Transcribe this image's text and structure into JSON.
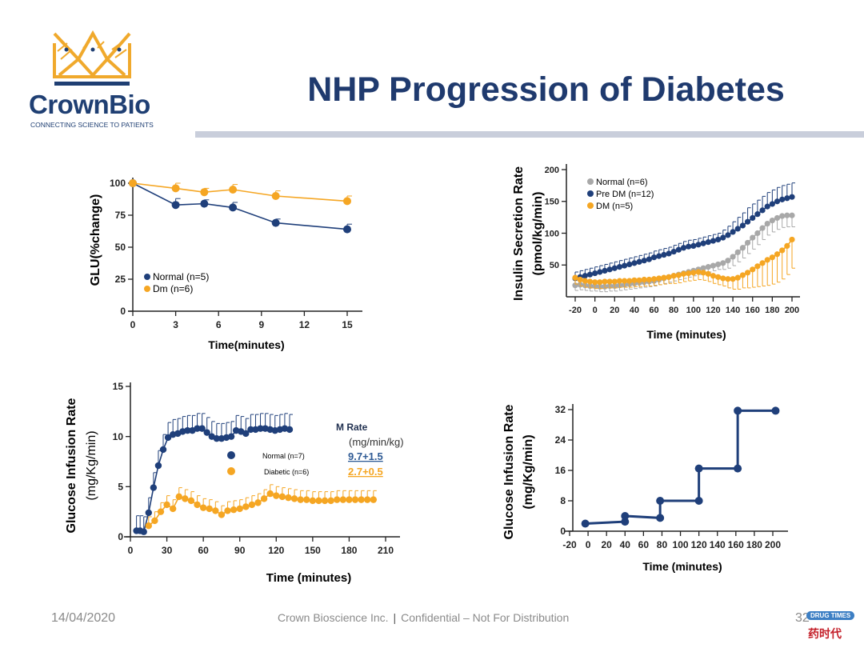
{
  "header": {
    "title": "NHP Progression of Diabetes"
  },
  "logo": {
    "name": "CrownBio",
    "tagline": "CONNECTING SCIENCE TO PATIENTS"
  },
  "footer": {
    "date": "14/04/2020",
    "company": "Crown Bioscience Inc.",
    "separator": "|",
    "notice": "Confidential – Not For Distribution",
    "page": "32"
  },
  "watermark": {
    "badge": "DRUG TIMES",
    "cn": "药时代"
  },
  "colors": {
    "blue": "#1f3f7a",
    "orange": "#f5a623",
    "gray": "#a8a8a8",
    "title": "#1f3a6e"
  },
  "chart_data": [
    {
      "type": "line",
      "xlabel": "Time(minutes)",
      "ylabel": [
        "GLU(%change)"
      ],
      "xlim": [
        0,
        15
      ],
      "ylim": [
        0,
        100
      ],
      "xticks": [
        0,
        3,
        6,
        9,
        12,
        15
      ],
      "yticks": [
        0,
        25,
        50,
        75,
        100
      ],
      "legend_placement": "bottom-left",
      "series": [
        {
          "name": "Normal (n=5)",
          "color": "#1f3f7a",
          "x": [
            0,
            3,
            5,
            7,
            10,
            15
          ],
          "y": [
            100,
            83,
            84,
            81,
            69,
            64
          ],
          "error": [
            0,
            5,
            3,
            4,
            3,
            4
          ],
          "error_direction": "up"
        },
        {
          "name": "Dm (n=6)",
          "color": "#f5a623",
          "x": [
            0,
            3,
            5,
            7,
            10,
            15
          ],
          "y": [
            100,
            96,
            93,
            95,
            90,
            86
          ],
          "error": [
            0,
            4,
            3,
            4,
            4,
            4
          ],
          "error_direction": "up"
        }
      ]
    },
    {
      "type": "line",
      "xlabel": "Time (minutes)",
      "ylabel": [
        "Insulin Secretion Rate",
        "(pmol/kg/min)"
      ],
      "xlim": [
        -20,
        200
      ],
      "ylim": [
        0,
        200
      ],
      "xticks": [
        -20,
        0,
        20,
        40,
        60,
        80,
        100,
        120,
        140,
        160,
        180,
        200
      ],
      "yticks": [
        50,
        100,
        150,
        200
      ],
      "legend_placement": "top-left",
      "x": [
        -20,
        -15,
        -10,
        -5,
        0,
        5,
        10,
        15,
        20,
        25,
        30,
        35,
        40,
        45,
        50,
        55,
        60,
        65,
        70,
        75,
        80,
        85,
        90,
        95,
        100,
        105,
        110,
        115,
        120,
        125,
        130,
        135,
        140,
        145,
        150,
        155,
        160,
        165,
        170,
        175,
        180,
        185,
        190,
        195,
        200
      ],
      "series": [
        {
          "name": "Normal (n=6)",
          "color": "#a8a8a8",
          "error_direction": "down",
          "y": [
            18,
            19,
            18,
            17,
            17,
            16,
            16,
            17,
            17,
            18,
            19,
            20,
            21,
            22,
            23,
            24,
            25,
            27,
            29,
            31,
            33,
            35,
            37,
            39,
            41,
            43,
            45,
            47,
            49,
            51,
            53,
            57,
            63,
            70,
            77,
            85,
            93,
            100,
            108,
            115,
            120,
            124,
            127,
            128,
            128
          ],
          "error": [
            8,
            8,
            8,
            8,
            8,
            8,
            8,
            8,
            8,
            8,
            8,
            8,
            8,
            8,
            8,
            8,
            8,
            8,
            8,
            8,
            8,
            8,
            8,
            8,
            8,
            8,
            8,
            8,
            8,
            8,
            10,
            12,
            14,
            15,
            16,
            17,
            18,
            18,
            18,
            18,
            18,
            18,
            18,
            18,
            18
          ]
        },
        {
          "name": "Pre DM (n=12)",
          "color": "#1f3f7a",
          "error_direction": "up",
          "y": [
            29,
            31,
            33,
            35,
            37,
            39,
            41,
            43,
            45,
            47,
            49,
            51,
            53,
            55,
            57,
            59,
            62,
            64,
            66,
            68,
            71,
            74,
            77,
            79,
            80,
            82,
            84,
            86,
            88,
            90,
            93,
            97,
            102,
            107,
            112,
            118,
            124,
            130,
            136,
            142,
            146,
            150,
            153,
            155,
            157
          ],
          "error": [
            10,
            10,
            10,
            10,
            10,
            10,
            10,
            10,
            10,
            10,
            10,
            10,
            10,
            10,
            10,
            10,
            10,
            10,
            10,
            10,
            10,
            10,
            10,
            10,
            10,
            10,
            10,
            10,
            10,
            10,
            12,
            14,
            16,
            18,
            20,
            22,
            22,
            22,
            22,
            22,
            22,
            22,
            22,
            22,
            22
          ]
        },
        {
          "name": "DM (n=5)",
          "color": "#f5a623",
          "error_direction": "down",
          "y": [
            30,
            27,
            25,
            24,
            23,
            23,
            24,
            24,
            24,
            25,
            25,
            25,
            26,
            26,
            27,
            27,
            28,
            29,
            30,
            31,
            33,
            34,
            36,
            37,
            38,
            39,
            38,
            36,
            33,
            31,
            29,
            28,
            28,
            30,
            34,
            38,
            43,
            48,
            53,
            58,
            62,
            67,
            73,
            80,
            90
          ],
          "error": [
            10,
            10,
            10,
            10,
            10,
            10,
            10,
            10,
            10,
            10,
            10,
            10,
            10,
            10,
            10,
            10,
            10,
            10,
            10,
            10,
            12,
            12,
            12,
            12,
            12,
            12,
            12,
            12,
            12,
            12,
            12,
            14,
            16,
            18,
            20,
            24,
            28,
            32,
            36,
            40,
            42,
            44,
            45,
            45,
            45
          ]
        }
      ]
    },
    {
      "type": "line",
      "xlabel": "Time (minutes)",
      "ylabel": [
        "Glucose Infusion Rate",
        "(mg/Kg/min)"
      ],
      "xlim": [
        0,
        210
      ],
      "ylim": [
        0,
        15
      ],
      "xticks": [
        0,
        30,
        60,
        90,
        120,
        150,
        180,
        210
      ],
      "yticks": [
        0,
        5,
        10,
        15
      ],
      "legend_placement": "center-right",
      "annotation": {
        "title": "M Rate",
        "unit": "(mg/min/kg)",
        "normal": "9.7+1.5",
        "diabetic": "2.7+0.5"
      },
      "series": [
        {
          "name": "Normal (n=7)",
          "color": "#1f3f7a",
          "error_direction": "up",
          "error_const": 1.5,
          "x": [
            5,
            8,
            11,
            15,
            19,
            23,
            27,
            31,
            35,
            39,
            43,
            47,
            51,
            55,
            59,
            63,
            67,
            71,
            75,
            79,
            83,
            87,
            91,
            95,
            99,
            103,
            107,
            111,
            115,
            119,
            123,
            127,
            131
          ],
          "y": [
            0.6,
            0.6,
            0.5,
            2.4,
            4.9,
            7.1,
            8.7,
            9.9,
            10.2,
            10.3,
            10.5,
            10.6,
            10.6,
            10.8,
            10.8,
            10.4,
            10.0,
            9.8,
            9.8,
            9.9,
            10.0,
            10.6,
            10.5,
            10.3,
            10.7,
            10.7,
            10.8,
            10.8,
            10.7,
            10.6,
            10.7,
            10.8,
            10.7
          ]
        },
        {
          "name": "Diabetic (n=6)",
          "color": "#f5a623",
          "error_direction": "up",
          "error_const": 0.9,
          "x": [
            15,
            20,
            25,
            30,
            35,
            40,
            45,
            50,
            55,
            60,
            65,
            70,
            75,
            80,
            85,
            90,
            95,
            100,
            105,
            110,
            115,
            120,
            125,
            130,
            135,
            140,
            145,
            150,
            155,
            160,
            165,
            170,
            175,
            180,
            185,
            190,
            195,
            200
          ],
          "y": [
            1.1,
            1.6,
            2.5,
            3.2,
            2.8,
            4.0,
            3.8,
            3.6,
            3.2,
            2.9,
            2.8,
            2.6,
            2.2,
            2.6,
            2.7,
            2.8,
            3.0,
            3.2,
            3.4,
            3.8,
            4.3,
            4.1,
            4.0,
            3.9,
            3.8,
            3.7,
            3.7,
            3.6,
            3.6,
            3.6,
            3.6,
            3.7,
            3.7,
            3.7,
            3.7,
            3.7,
            3.7,
            3.7
          ]
        }
      ]
    },
    {
      "type": "line",
      "xlabel": "Time (minutes)",
      "ylabel": [
        "Glucose Infusion Rate",
        "(mg/Kg/min)"
      ],
      "xlim": [
        -20,
        200
      ],
      "ylim": [
        0,
        32
      ],
      "xticks": [
        -20,
        0,
        20,
        40,
        60,
        80,
        100,
        120,
        140,
        160,
        180,
        200
      ],
      "yticks": [
        0,
        8,
        16,
        24,
        32
      ],
      "series": [
        {
          "color": "#1f3f7a",
          "x": [
            -3,
            40,
            40,
            78,
            78,
            120,
            120,
            162,
            162,
            203
          ],
          "y": [
            2,
            2.5,
            4,
            3.5,
            8,
            8,
            16.5,
            16.5,
            31.7,
            31.7
          ],
          "step": true
        }
      ]
    }
  ]
}
